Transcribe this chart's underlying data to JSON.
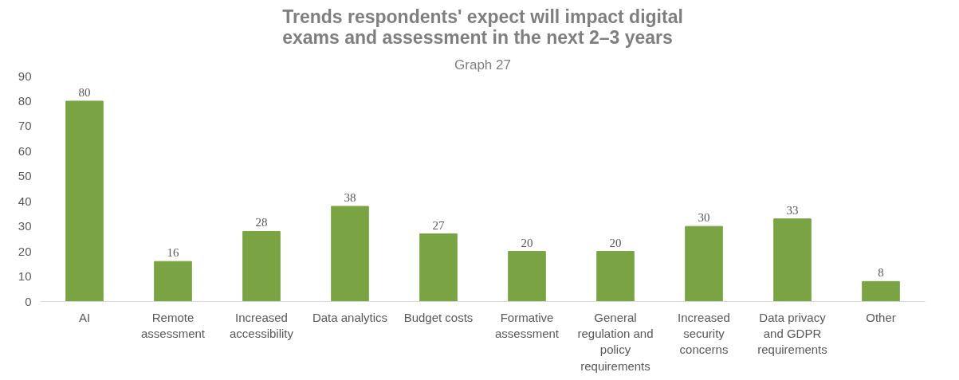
{
  "chart_data": {
    "type": "bar",
    "title": "Trends respondents' expect will impact digital exams and assessment in the next 2–3 years",
    "subtitle": "Graph 27",
    "categories": [
      "AI",
      "Remote assessment",
      "Increased accessibility",
      "Data analytics",
      "Budget costs",
      "Formative assessment",
      "General regulation and policy requirements",
      "Increased security concerns",
      "Data privacy and GDPR requirements",
      "Other"
    ],
    "values": [
      80,
      16,
      28,
      38,
      27,
      20,
      20,
      30,
      33,
      8
    ],
    "color": "#7aa444",
    "ylim": [
      0,
      90
    ],
    "yticks": [
      0,
      10,
      20,
      30,
      40,
      50,
      60,
      70,
      80,
      90
    ],
    "grid": false,
    "data_labels": true
  }
}
